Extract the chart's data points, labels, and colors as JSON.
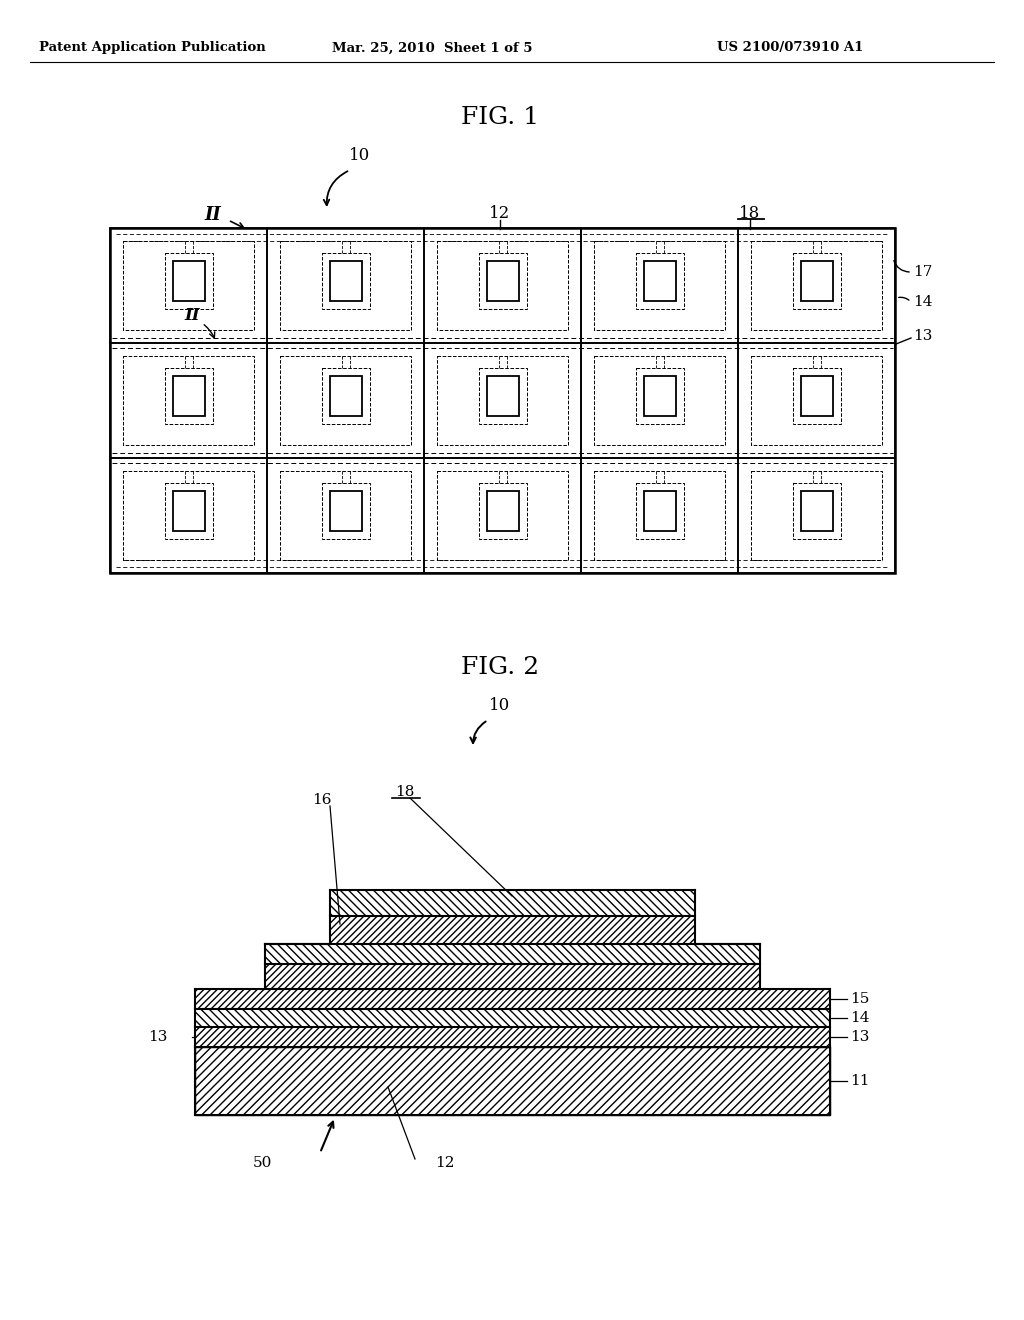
{
  "bg_color": "#ffffff",
  "header_left": "Patent Application Publication",
  "header_mid": "Mar. 25, 2010  Sheet 1 of 5",
  "header_right": "US 2100/073910 A1",
  "fig1_title": "FIG. 1",
  "fig2_title": "FIG. 2",
  "lc": "#000000",
  "tc": "#000000",
  "fig1": {
    "label_10": "10",
    "label_II": "II",
    "label_12": "12",
    "label_18": "18",
    "label_17": "17",
    "label_14": "14",
    "label_13": "13",
    "n_rows": 3,
    "n_cols": 5,
    "ox": 110,
    "oy": 228,
    "ow": 785,
    "oh": 345
  },
  "fig2": {
    "label_10": "10",
    "label_16": "16",
    "label_18": "18",
    "label_15": "15",
    "label_14": "14",
    "label_13a": "13",
    "label_13b": "13",
    "label_11": "11",
    "label_50": "50",
    "label_12": "12"
  }
}
